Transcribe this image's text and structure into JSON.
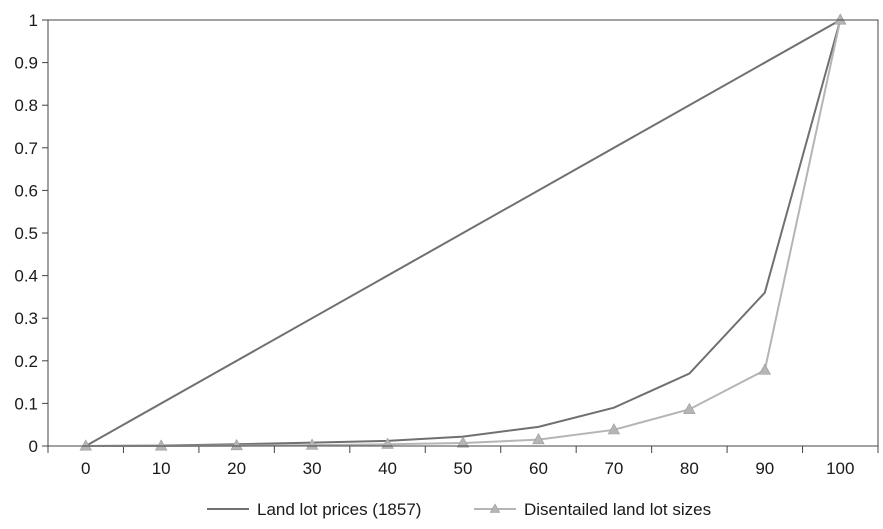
{
  "chart_data": {
    "type": "line",
    "title": "",
    "xlabel": "",
    "ylabel": "",
    "x": [
      0,
      10,
      20,
      30,
      40,
      50,
      60,
      70,
      80,
      90,
      100
    ],
    "x_tick_labels": [
      "0",
      "10",
      "20",
      "30",
      "40",
      "50",
      "60",
      "70",
      "80",
      "90",
      "100"
    ],
    "y_tick_labels": [
      "0",
      "0.1",
      "0.2",
      "0.3",
      "0.4",
      "0.5",
      "0.6",
      "0.7",
      "0.8",
      "0.9",
      "1"
    ],
    "xlim": [
      -5,
      105
    ],
    "ylim": [
      0,
      1
    ],
    "grid": false,
    "legend_position": "bottom",
    "equality_line": {
      "x": [
        0,
        100
      ],
      "y": [
        0,
        1
      ],
      "color": "#707070"
    },
    "series": [
      {
        "name": "Land lot prices (1857)",
        "marker": "none",
        "color": "#707070",
        "values": [
          0,
          0.001,
          0.004,
          0.008,
          0.012,
          0.022,
          0.045,
          0.09,
          0.17,
          0.36,
          1.0
        ]
      },
      {
        "name": "Disentailed land lot sizes",
        "marker": "triangle",
        "color": "#b5b5b5",
        "values": [
          0,
          0.0,
          0.001,
          0.002,
          0.004,
          0.007,
          0.015,
          0.038,
          0.086,
          0.178,
          1.0
        ]
      }
    ],
    "colors": {
      "axis": "#444444",
      "text": "#1a1a1a"
    }
  }
}
